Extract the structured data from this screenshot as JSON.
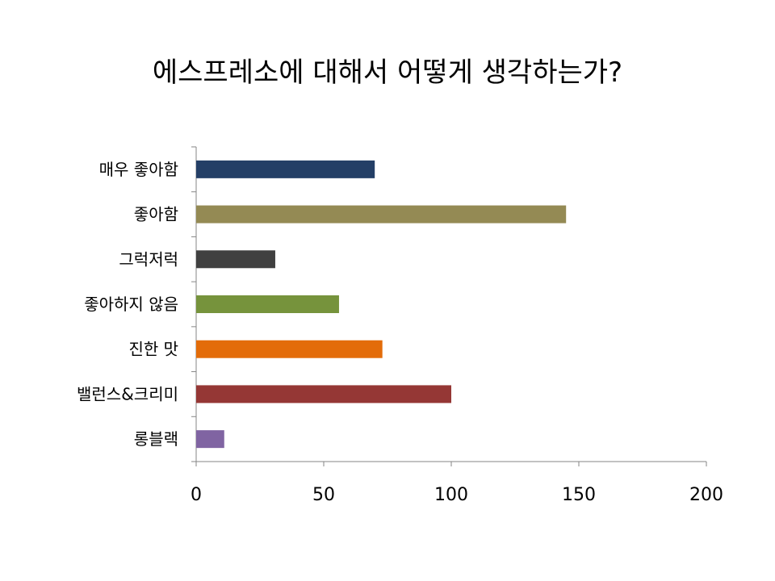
{
  "chart_data": {
    "type": "bar",
    "orientation": "horizontal",
    "title": "에스프레소에 대해서 어떻게 생각하는가?",
    "categories": [
      "매우 좋아함",
      "좋아함",
      "그럭저럭",
      "좋아하지 않음",
      "진한 맛",
      "밸런스&크리미",
      "롱블랙"
    ],
    "values": [
      70,
      145,
      31,
      56,
      73,
      100,
      11
    ],
    "colors": [
      "#243f66",
      "#948a54",
      "#404040",
      "#76933c",
      "#e36c09",
      "#953735",
      "#8064a2"
    ],
    "xlim": [
      0,
      200
    ],
    "xticks": [
      "0",
      "50",
      "100",
      "150",
      "200"
    ],
    "grid": false,
    "legend": "none"
  }
}
